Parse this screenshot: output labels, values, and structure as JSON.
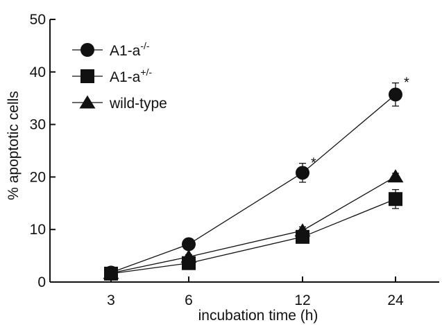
{
  "chart_data": {
    "type": "line",
    "title": "",
    "xlabel": "incubation time (h)",
    "ylabel": "% apoptotic cells",
    "categories": [
      "3",
      "6",
      "12",
      "24"
    ],
    "ylim": [
      0,
      50
    ],
    "yticks": [
      "0",
      "10",
      "20",
      "30",
      "40",
      "50"
    ],
    "grid": false,
    "legend_position": "top-left",
    "series": [
      {
        "name_base": "A1-a",
        "name_sup": "-/-",
        "marker": "circle",
        "values": [
          1.8,
          7.2,
          20.8,
          35.7
        ],
        "errors": [
          0.3,
          0.6,
          1.8,
          2.2
        ],
        "significance": [
          "",
          "",
          "*",
          "*"
        ]
      },
      {
        "name_base": "A1-a",
        "name_sup": "+/-",
        "marker": "square",
        "values": [
          1.6,
          3.6,
          8.6,
          15.8
        ],
        "errors": [
          0.3,
          0.5,
          0.8,
          1.8
        ],
        "significance": [
          "",
          "",
          "",
          ""
        ]
      },
      {
        "name_base": "wild-type",
        "name_sup": "",
        "marker": "triangle",
        "values": [
          1.7,
          4.8,
          9.8,
          20.1
        ],
        "errors": [
          0.3,
          0.4,
          0.7,
          0.6
        ],
        "significance": [
          "",
          "",
          "",
          ""
        ]
      }
    ]
  }
}
